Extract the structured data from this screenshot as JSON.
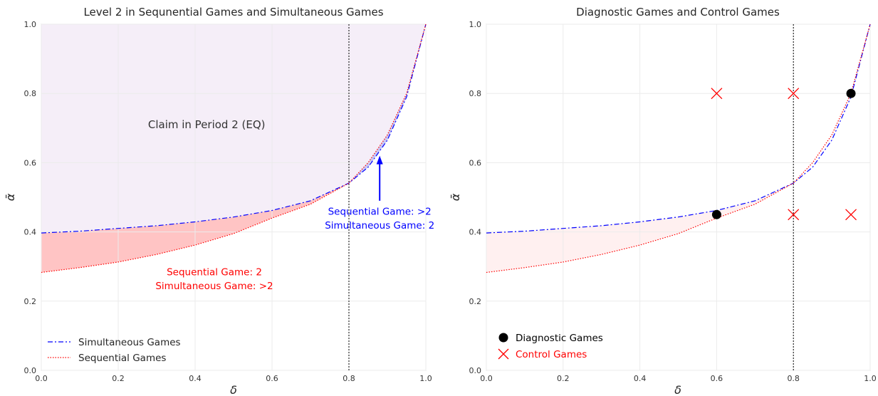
{
  "colors": {
    "simultaneous": "#0000ff",
    "sequential": "#ff0000",
    "claim_region": "#f5eef8",
    "red_fill": "#ffc4c4",
    "blue_fill": "#c8c8f4",
    "light_red_fill": "#fff0f0",
    "diagnostic": "#000000",
    "control": "#ff0000"
  },
  "chart_data": [
    {
      "type": "line",
      "title": "Level 2 in Sequnential Games and Simultaneous Games",
      "xlabel": "δ",
      "ylabel": "ᾱ",
      "xlim": [
        0,
        1
      ],
      "ylim": [
        0,
        1
      ],
      "xticks": [
        "0.0",
        "0.2",
        "0.4",
        "0.6",
        "0.8",
        "1.0"
      ],
      "yticks": [
        "0.0",
        "0.2",
        "0.4",
        "0.6",
        "0.8",
        "1.0"
      ],
      "grid": true,
      "legend_position": "lower-left",
      "x": [
        0.0,
        0.1,
        0.2,
        0.3,
        0.4,
        0.5,
        0.6,
        0.7,
        0.8,
        0.85,
        0.9,
        0.95,
        1.0
      ],
      "series": [
        {
          "name": "Simultaneous Games",
          "style": "dash-dot",
          "color": "#0000ff",
          "values": [
            0.397,
            0.402,
            0.41,
            0.418,
            0.429,
            0.443,
            0.462,
            0.49,
            0.541,
            0.587,
            0.665,
            0.79,
            1.0
          ]
        },
        {
          "name": "Sequential Games",
          "style": "dotted",
          "color": "#ff0000",
          "values": [
            0.283,
            0.297,
            0.313,
            0.335,
            0.362,
            0.395,
            0.44,
            0.48,
            0.541,
            0.6,
            0.68,
            0.8,
            1.0
          ]
        }
      ],
      "vline": 0.8,
      "annotations": [
        {
          "text": "Claim in Period 2 (EQ)",
          "x": 0.43,
          "y": 0.71,
          "color": "#333333"
        },
        {
          "text": "Sequential Game: >2",
          "x": 0.88,
          "y": 0.46,
          "color": "#0000ff"
        },
        {
          "text": "Simultaneous Game: 2",
          "x": 0.88,
          "y": 0.42,
          "color": "#0000ff"
        },
        {
          "text": "Sequential Game: 2",
          "x": 0.45,
          "y": 0.285,
          "color": "#ff0000"
        },
        {
          "text": "Simultaneous Game: >2",
          "x": 0.45,
          "y": 0.245,
          "color": "#ff0000"
        }
      ],
      "arrow": {
        "from": [
          0.88,
          0.49
        ],
        "to": [
          0.88,
          0.62
        ],
        "color": "#0000ff"
      }
    },
    {
      "type": "scatter",
      "title": "Diagnostic Games and Control Games",
      "xlabel": "δ",
      "ylabel": "ᾱ",
      "xlim": [
        0,
        1
      ],
      "ylim": [
        0,
        1
      ],
      "xticks": [
        "0.0",
        "0.2",
        "0.4",
        "0.6",
        "0.8",
        "1.0"
      ],
      "yticks": [
        "0.0",
        "0.2",
        "0.4",
        "0.6",
        "0.8",
        "1.0"
      ],
      "grid": true,
      "legend_position": "lower-left",
      "vline": 0.8,
      "series": [
        {
          "name": "Diagnostic Games",
          "marker": "circle",
          "color": "#000000",
          "points": [
            [
              0.6,
              0.45
            ],
            [
              0.95,
              0.8
            ]
          ]
        },
        {
          "name": "Control Games",
          "marker": "x",
          "color": "#ff0000",
          "points": [
            [
              0.6,
              0.8
            ],
            [
              0.8,
              0.8
            ],
            [
              0.8,
              0.45
            ],
            [
              0.95,
              0.45
            ]
          ]
        }
      ]
    }
  ]
}
